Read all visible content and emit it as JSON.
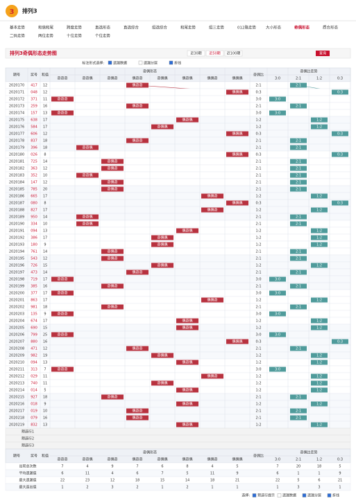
{
  "header": {
    "logo": "3",
    "title": "排列3"
  },
  "nav": [
    "基本走势",
    "和值和尾",
    "跨度走势",
    "直选形态",
    "直选综合",
    "组选综合",
    "和尾走势",
    "组三走势",
    "012路走势",
    "大小形态",
    "奇偶形态",
    "质合形态",
    "二码走势",
    "两位走势",
    "十位走势",
    "个位走势"
  ],
  "active_nav": 10,
  "panel": {
    "title": "排列3奇偶形态走势图",
    "periods": [
      "近30期",
      "近50期",
      "近100期"
    ],
    "query": "查询"
  },
  "options": {
    "label": "标注形式选择:",
    "items": [
      "遗漏数据",
      "遗漏分层",
      "折线"
    ]
  },
  "table": {
    "headers": {
      "issue": "期号",
      "number": "奖号",
      "sum": "和值",
      "form": "奇偶形态",
      "ratio": "奇偶比",
      "ratio_trend": "奇偶比走势"
    },
    "forms": [
      "奇奇奇",
      "奇奇偶",
      "奇偶奇",
      "偶奇奇",
      "奇偶偶",
      "偶奇偶",
      "偶偶奇",
      "偶偶偶"
    ],
    "ratios": [
      "3:0",
      "2:1",
      "1:2",
      "0:3"
    ],
    "rows": [
      {
        "issue": "2020170",
        "number": "417",
        "sum": 12,
        "form": "偶奇奇",
        "ratio": "2:1"
      },
      {
        "issue": "2020171",
        "number": "048",
        "sum": 12,
        "form": "偶偶偶",
        "ratio": "0:3"
      },
      {
        "issue": "2020172",
        "number": "371",
        "sum": 11,
        "form": "奇奇奇",
        "ratio": "3:0"
      },
      {
        "issue": "2020173",
        "number": "259",
        "sum": 16,
        "form": "偶奇奇",
        "ratio": "2:1"
      },
      {
        "issue": "2020174",
        "number": "157",
        "sum": 13,
        "form": "奇奇奇",
        "ratio": "3:0"
      },
      {
        "issue": "2020175",
        "number": "638",
        "sum": 17,
        "form": "偶奇偶",
        "ratio": "1:2"
      },
      {
        "issue": "2020176",
        "number": "584",
        "sum": 17,
        "form": "奇偶偶",
        "ratio": "1:2"
      },
      {
        "issue": "2020177",
        "number": "606",
        "sum": 12,
        "form": "偶偶偶",
        "ratio": "0:3"
      },
      {
        "issue": "2020178",
        "number": "837",
        "sum": 18,
        "form": "偶奇奇",
        "ratio": "2:1"
      },
      {
        "issue": "2020179",
        "number": "396",
        "sum": 18,
        "form": "奇奇偶",
        "ratio": "2:1"
      },
      {
        "issue": "2020180",
        "number": "026",
        "sum": 8,
        "form": "偶偶偶",
        "ratio": "0:3"
      },
      {
        "issue": "2020181",
        "number": "725",
        "sum": 14,
        "form": "奇偶奇",
        "ratio": "2:1"
      },
      {
        "issue": "2020182",
        "number": "363",
        "sum": 12,
        "form": "奇偶奇",
        "ratio": "2:1"
      },
      {
        "issue": "2020183",
        "number": "352",
        "sum": 10,
        "form": "奇奇偶",
        "ratio": "2:1"
      },
      {
        "issue": "2020184",
        "number": "147",
        "sum": 12,
        "form": "奇偶奇",
        "ratio": "2:1"
      },
      {
        "issue": "2020185",
        "number": "785",
        "sum": 20,
        "form": "奇偶奇",
        "ratio": "2:1"
      },
      {
        "issue": "2020186",
        "number": "665",
        "sum": 17,
        "form": "偶偶奇",
        "ratio": "1:2"
      },
      {
        "issue": "2020187",
        "number": "080",
        "sum": 8,
        "form": "偶偶偶",
        "ratio": "0:3"
      },
      {
        "issue": "2020188",
        "number": "827",
        "sum": 17,
        "form": "偶偶奇",
        "ratio": "1:2"
      },
      {
        "issue": "2020189",
        "number": "950",
        "sum": 14,
        "form": "奇奇偶",
        "ratio": "2:1"
      },
      {
        "issue": "2020190",
        "number": "334",
        "sum": 10,
        "form": "奇奇偶",
        "ratio": "2:1"
      },
      {
        "issue": "2020191",
        "number": "094",
        "sum": 13,
        "form": "偶奇偶",
        "ratio": "1:2"
      },
      {
        "issue": "2020192",
        "number": "386",
        "sum": 17,
        "form": "奇偶偶",
        "ratio": "1:2"
      },
      {
        "issue": "2020193",
        "number": "180",
        "sum": 9,
        "form": "奇偶偶",
        "ratio": "1:2"
      },
      {
        "issue": "2020194",
        "number": "761",
        "sum": 14,
        "form": "奇偶奇",
        "ratio": "2:1"
      },
      {
        "issue": "2020195",
        "number": "543",
        "sum": 12,
        "form": "奇偶奇",
        "ratio": "2:1"
      },
      {
        "issue": "2020196",
        "number": "726",
        "sum": 15,
        "form": "奇偶偶",
        "ratio": "1:2"
      },
      {
        "issue": "2020197",
        "number": "473",
        "sum": 14,
        "form": "偶奇奇",
        "ratio": "2:1"
      },
      {
        "issue": "2020198",
        "number": "719",
        "sum": 17,
        "form": "奇奇奇",
        "ratio": "3:0"
      },
      {
        "issue": "2020199",
        "number": "385",
        "sum": 16,
        "form": "奇偶奇",
        "ratio": "2:1"
      },
      {
        "issue": "2020200",
        "number": "377",
        "sum": 17,
        "form": "奇奇奇",
        "ratio": "3:0"
      },
      {
        "issue": "2020201",
        "number": "863",
        "sum": 17,
        "form": "偶偶奇",
        "ratio": "1:2"
      },
      {
        "issue": "2020202",
        "number": "981",
        "sum": 18,
        "form": "奇偶奇",
        "ratio": "2:1"
      },
      {
        "issue": "2020203",
        "number": "135",
        "sum": 9,
        "form": "奇奇奇",
        "ratio": "3:0"
      },
      {
        "issue": "2020204",
        "number": "674",
        "sum": 17,
        "form": "偶奇偶",
        "ratio": "1:2"
      },
      {
        "issue": "2020205",
        "number": "690",
        "sum": 15,
        "form": "偶奇偶",
        "ratio": "1:2"
      },
      {
        "issue": "2020206",
        "number": "799",
        "sum": 25,
        "form": "奇奇奇",
        "ratio": "3:0"
      },
      {
        "issue": "2020207",
        "number": "880",
        "sum": 16,
        "form": "偶偶偶",
        "ratio": "0:3"
      },
      {
        "issue": "2020208",
        "number": "471",
        "sum": 12,
        "form": "偶奇奇",
        "ratio": "2:1"
      },
      {
        "issue": "2020209",
        "number": "982",
        "sum": 19,
        "form": "奇偶偶",
        "ratio": "1:2"
      },
      {
        "issue": "2020210",
        "number": "094",
        "sum": 13,
        "form": "偶奇偶",
        "ratio": "1:2"
      },
      {
        "issue": "2020211",
        "number": "313",
        "sum": 7,
        "form": "奇奇奇",
        "ratio": "3:0"
      },
      {
        "issue": "2020212",
        "number": "029",
        "sum": 11,
        "form": "偶偶奇",
        "ratio": "1:2"
      },
      {
        "issue": "2020213",
        "number": "740",
        "sum": 11,
        "form": "奇偶偶",
        "ratio": "1:2"
      },
      {
        "issue": "2020214",
        "number": "014",
        "sum": 5,
        "form": "偶奇偶",
        "ratio": "1:2"
      },
      {
        "issue": "2020215",
        "number": "927",
        "sum": 18,
        "form": "奇偶奇",
        "ratio": "2:1"
      },
      {
        "issue": "2020216",
        "number": "018",
        "sum": 9,
        "form": "偶奇偶",
        "ratio": "1:2"
      },
      {
        "issue": "2020217",
        "number": "019",
        "sum": 10,
        "form": "偶奇奇",
        "ratio": "2:1"
      },
      {
        "issue": "2020218",
        "number": "079",
        "sum": 16,
        "form": "偶奇奇",
        "ratio": "2:1"
      },
      {
        "issue": "2020219",
        "number": "832",
        "sum": 13,
        "form": "偶奇偶",
        "ratio": "1:2"
      }
    ],
    "pred_rows": [
      "预选行1",
      "预选行2",
      "预选行3"
    ],
    "stats": [
      {
        "label": "出现总次数",
        "values": [
          7,
          4,
          9,
          7,
          6,
          8,
          4,
          5,
          7,
          20,
          18,
          5
        ]
      },
      {
        "label": "平均遗漏值",
        "values": [
          6,
          11,
          4,
          6,
          7,
          5,
          11,
          9,
          6,
          1,
          1,
          9
        ]
      },
      {
        "label": "最大遗漏值",
        "values": [
          22,
          23,
          12,
          18,
          15,
          14,
          18,
          21,
          22,
          5,
          6,
          21
        ]
      },
      {
        "label": "最大连出值",
        "values": [
          1,
          2,
          3,
          2,
          1,
          2,
          1,
          1,
          1,
          3,
          3,
          1
        ]
      }
    ]
  },
  "footer": {
    "label": "选择:",
    "items": [
      "预选行提示",
      "遗漏数据",
      "遗漏分层",
      "折线"
    ]
  }
}
